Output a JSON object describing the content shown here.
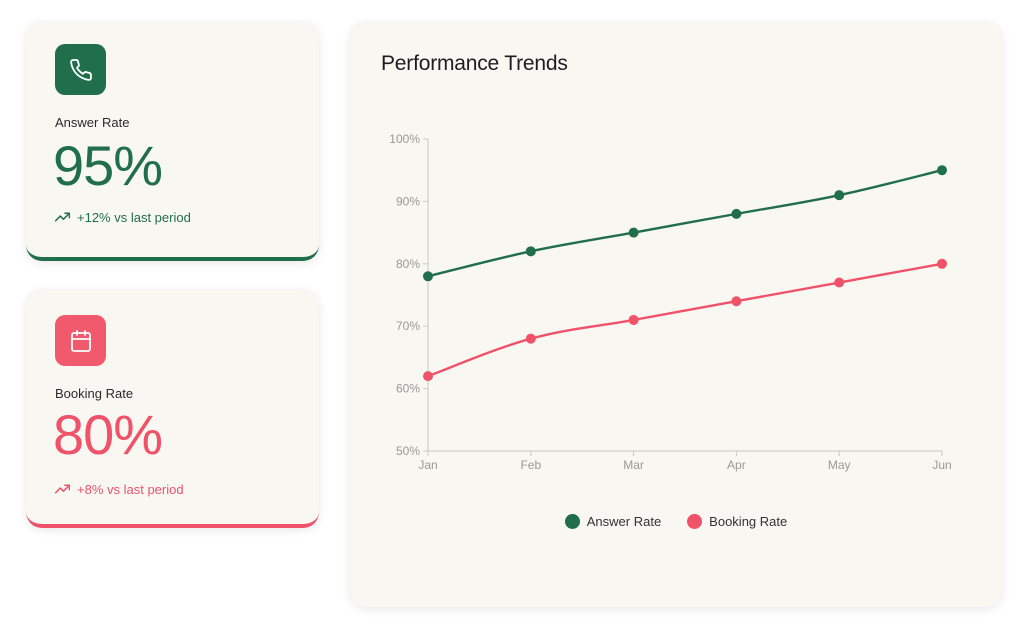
{
  "colors": {
    "green": "#216e4c",
    "pink": "#ef5269"
  },
  "metrics": {
    "answer": {
      "icon": "phone-icon",
      "label": "Answer Rate",
      "value": "95%",
      "trend": "+12% vs last period"
    },
    "booking": {
      "icon": "calendar-icon",
      "label": "Booking Rate",
      "value": "80%",
      "trend": "+8% vs last period"
    }
  },
  "chart_data": {
    "type": "line",
    "title": "Performance Trends",
    "categories": [
      "Jan",
      "Feb",
      "Mar",
      "Apr",
      "May",
      "Jun"
    ],
    "series": [
      {
        "name": "Answer Rate",
        "color": "#216e4c",
        "values": [
          78,
          82,
          85,
          88,
          91,
          95
        ]
      },
      {
        "name": "Booking Rate",
        "color": "#ef5269",
        "values": [
          62,
          68,
          71,
          74,
          77,
          80
        ]
      }
    ],
    "yticks": [
      "50%",
      "60%",
      "70%",
      "80%",
      "90%",
      "100%"
    ],
    "ylim": [
      50,
      100
    ],
    "xlabel": "",
    "ylabel": "",
    "grid": false,
    "legend": "bottom-center"
  }
}
